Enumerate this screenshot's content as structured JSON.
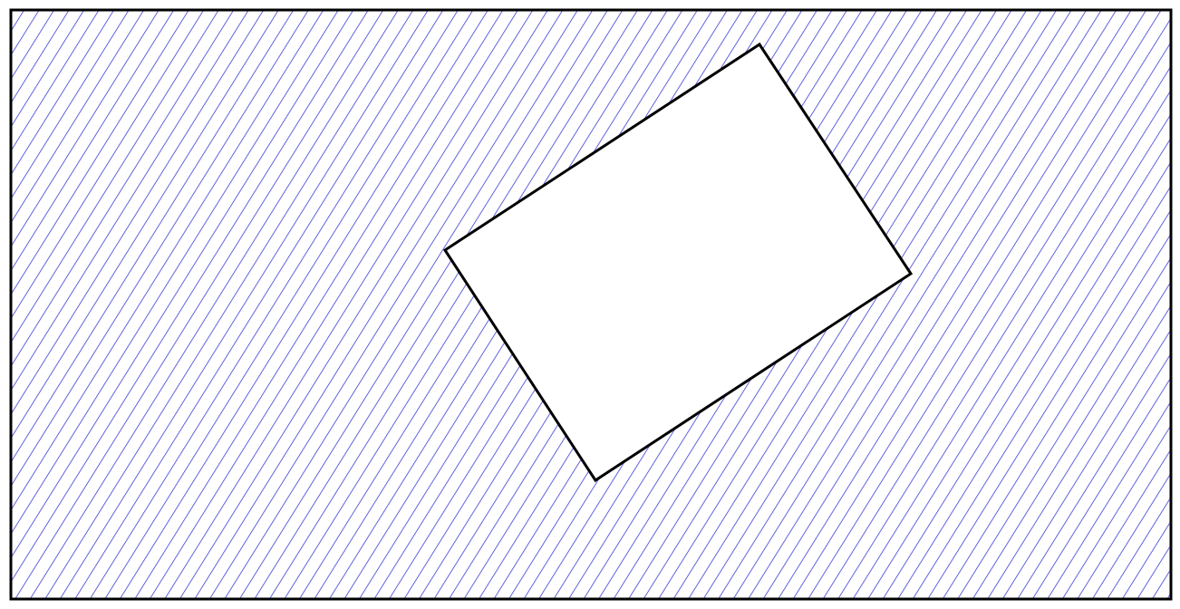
{
  "diagram": {
    "fill_pattern": "diagonal-hatch",
    "colors": {
      "background": "#ffffff",
      "hatch": "#3b3bd6",
      "border": "#000000",
      "inner_fill": "#ffffff",
      "inner_stroke": "#000000"
    }
  }
}
